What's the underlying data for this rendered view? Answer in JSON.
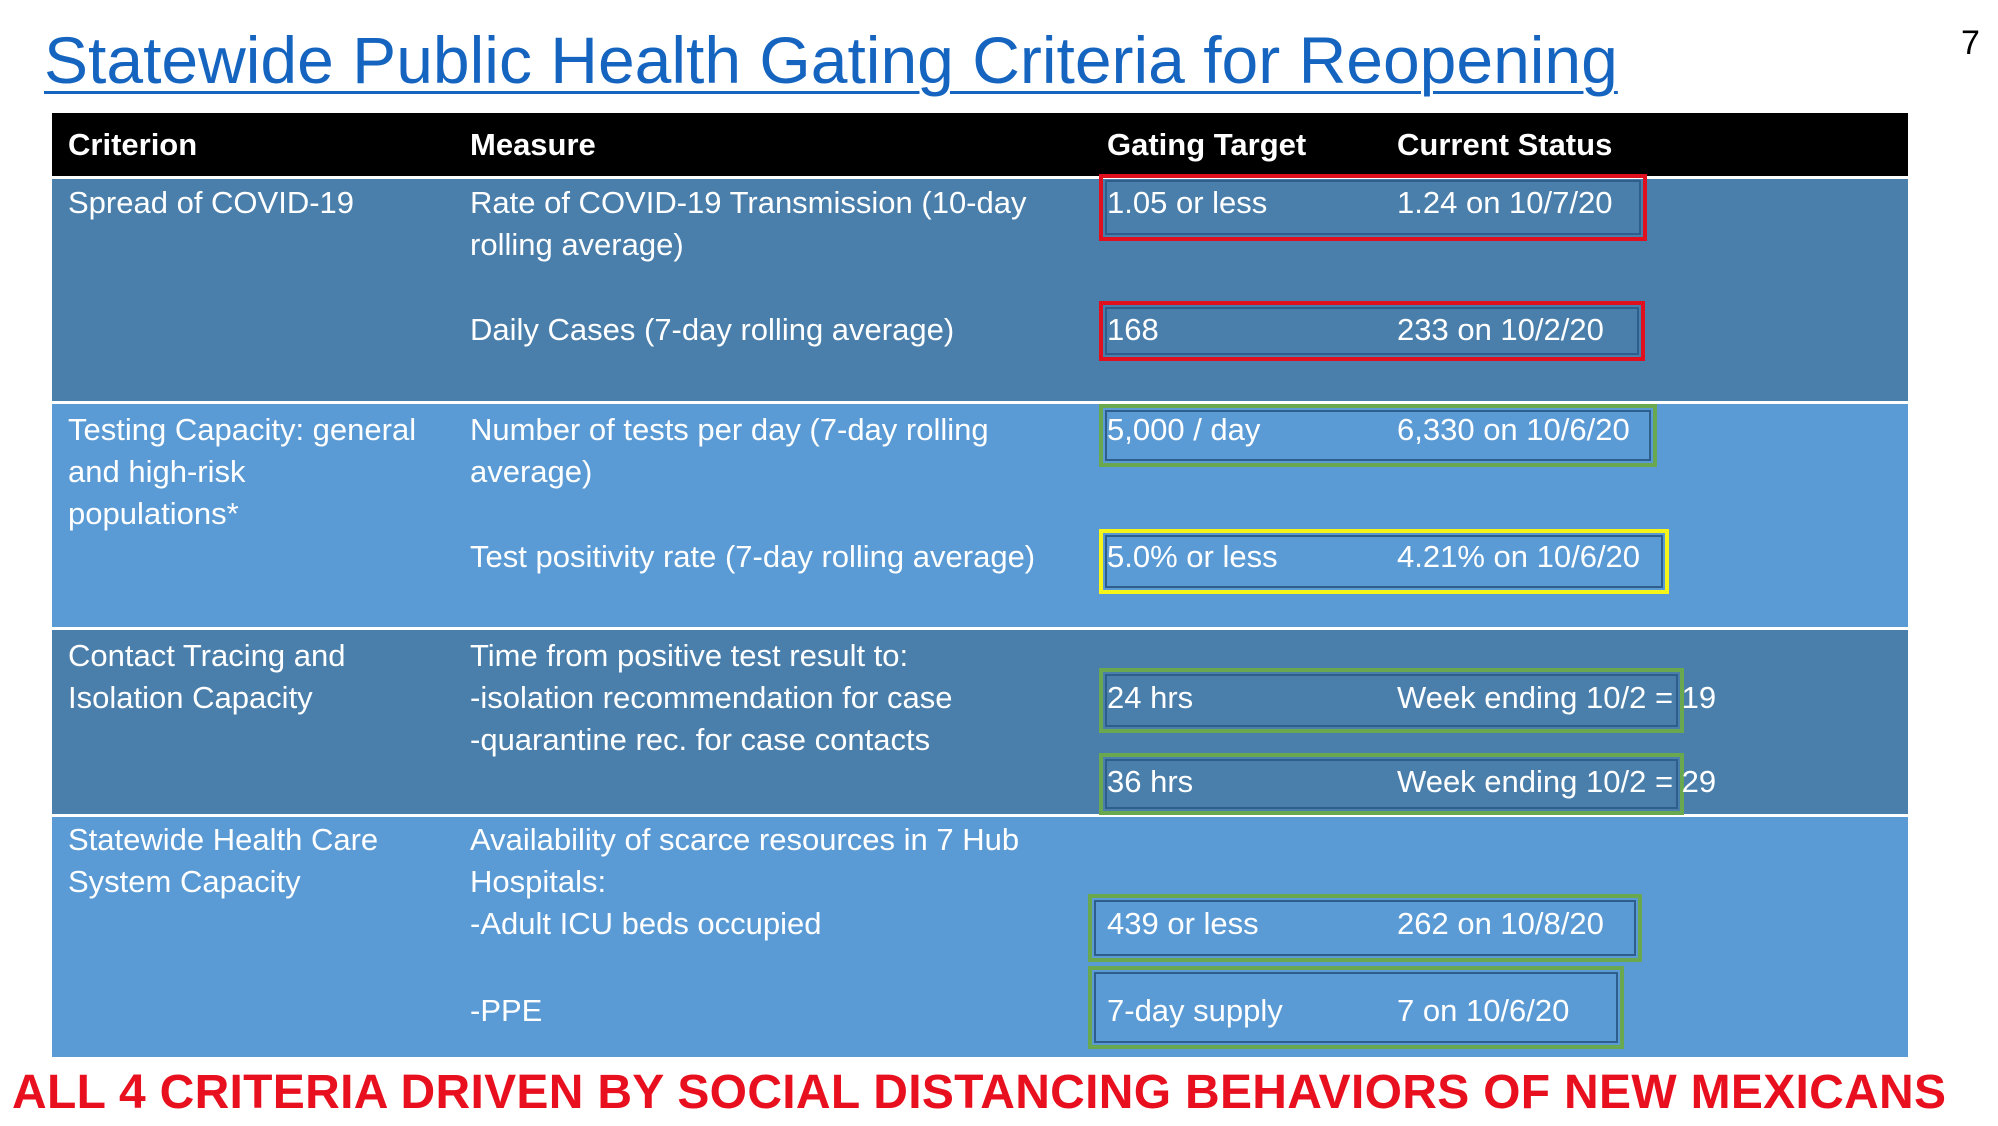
{
  "title": "Statewide Public Health Gating Criteria for Reopening",
  "slide_number": "7",
  "columns": [
    "Criterion",
    "Measure",
    "Gating Target",
    "Current Status"
  ],
  "rows": [
    {
      "criterion": [
        "Spread of COVID-19"
      ],
      "measures": [
        {
          "measure": [
            "Rate of COVID-19 Transmission (10-day",
            "rolling average)"
          ],
          "target": "1.05 or less",
          "status": "1.24 on 10/7/20",
          "highlight": "red"
        },
        {
          "measure": [
            "Daily Cases (7-day rolling average)"
          ],
          "target": "168",
          "status": "233 on 10/2/20",
          "highlight": "red"
        }
      ]
    },
    {
      "criterion": [
        "Testing Capacity: general",
        "and high-risk",
        "populations*"
      ],
      "measures": [
        {
          "measure": [
            "Number of tests per day (7-day rolling",
            "average)"
          ],
          "target": "5,000 / day",
          "status": "6,330 on 10/6/20",
          "highlight": "green"
        },
        {
          "measure": [
            "Test positivity rate  (7-day rolling average)"
          ],
          "target": "5.0% or less",
          "status": "4.21% on 10/6/20",
          "highlight": "yellow"
        }
      ]
    },
    {
      "criterion": [
        "Contact Tracing and",
        "Isolation Capacity"
      ],
      "measure_text": [
        "Time from positive test result to:",
        "-isolation recommendation for case",
        "-quarantine rec. for case contacts"
      ],
      "measures": [
        {
          "target": "24 hrs",
          "status": "Week ending 10/2 = 19",
          "highlight": "green"
        },
        {
          "target": "36 hrs",
          "status": "Week ending 10/2 = 29",
          "highlight": "green"
        }
      ]
    },
    {
      "criterion": [
        "Statewide Health Care",
        "System Capacity"
      ],
      "measure_text": [
        "Availability of scarce resources in 7 Hub",
        "Hospitals:",
        "-Adult ICU beds occupied"
      ],
      "measures": [
        {
          "target": "439 or less",
          "status": "262 on 10/8/20",
          "highlight": "green"
        },
        {
          "measure": [
            "-PPE"
          ],
          "target": "7-day supply",
          "status": "7 on 10/6/20",
          "highlight": "green"
        }
      ]
    }
  ],
  "footer": "ALL 4 CRITERIA DRIVEN BY SOCIAL DISTANCING BEHAVIORS OF NEW MEXICANS",
  "colors": {
    "title": "#1565c0",
    "header_bg": "#000000",
    "dark_band": "#4a7fab",
    "light_band": "#5b9bd5",
    "red": "#e0101e",
    "green": "#6aa84f",
    "yellow": "#f5f51a",
    "footer": "#e8101e"
  }
}
